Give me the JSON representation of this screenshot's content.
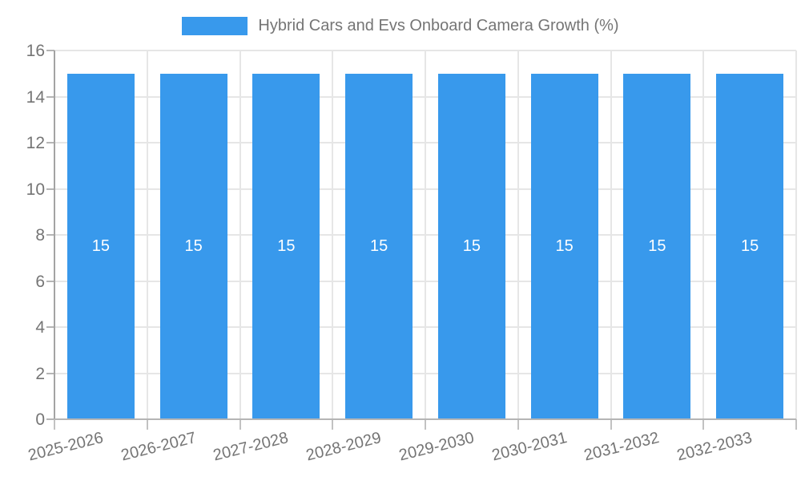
{
  "legend": {
    "label": "Hybrid Cars and Evs Onboard Camera Growth (%)",
    "swatch_color": "#3899ec"
  },
  "chart_data": {
    "type": "bar",
    "title": "Hybrid Cars and Evs Onboard Camera Growth (%)",
    "categories": [
      "2025-2026",
      "2026-2027",
      "2027-2028",
      "2028-2029",
      "2029-2030",
      "2030-2031",
      "2031-2032",
      "2032-2033"
    ],
    "values": [
      15,
      15,
      15,
      15,
      15,
      15,
      15,
      15
    ],
    "bar_labels": [
      "15",
      "15",
      "15",
      "15",
      "15",
      "15",
      "15",
      "15"
    ],
    "xlabel": "",
    "ylabel": "",
    "ylim": [
      0,
      16
    ],
    "yticks": [
      0,
      2,
      4,
      6,
      8,
      10,
      12,
      14,
      16
    ],
    "grid": true,
    "legend_position": "top",
    "bar_color": "#3899ec",
    "bar_label_color": "#ffffff",
    "axis_text_color": "#757575",
    "grid_color": "#e6e6e6"
  }
}
